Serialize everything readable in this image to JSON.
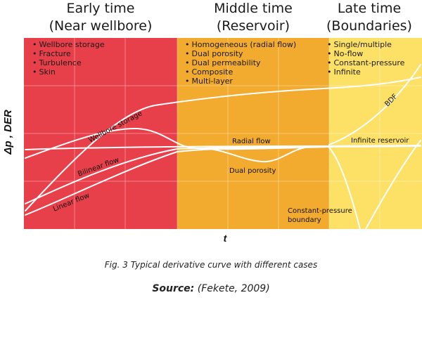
{
  "headers": {
    "early": [
      "Early time",
      "(Near wellbore)"
    ],
    "middle": [
      "Middle time",
      "(Reservoir)"
    ],
    "late": [
      "Late time",
      "(Boundaries)"
    ]
  },
  "lists": {
    "early": [
      "Wellbore storage",
      "Fracture",
      "Turbulence",
      "Skin"
    ],
    "middle": [
      "Homogeneous (radial flow)",
      "Dual porosity",
      "Dual permeability",
      "Composite",
      "Multi-layer"
    ],
    "late": [
      "Single/multiple",
      "No-flow",
      "Constant-pressure",
      "Infinite"
    ]
  },
  "curve_labels": {
    "wellbore_storage": "Wellbore storage",
    "bilinear_flow": "Bilinear flow",
    "linear_flow": "Linear flow",
    "radial_flow": "Radial flow",
    "dual_porosity": "Dual porosity",
    "infinite_reservoir": "Infinite reservoir",
    "bdf": "BDF",
    "constant_pressure_1": "Constant-pressure",
    "constant_pressure_2": "boundary"
  },
  "axes": {
    "y": "Δp , DER",
    "x": "t"
  },
  "caption": "Fig. 3 Typical derivative curve with different cases",
  "source": {
    "label": "Source:",
    "text": " (Fekete, 2009)"
  },
  "colors": {
    "early": "#e8404a",
    "middle": "#f2ab2e",
    "late": "#fde066",
    "curve": "#ffffff"
  }
}
